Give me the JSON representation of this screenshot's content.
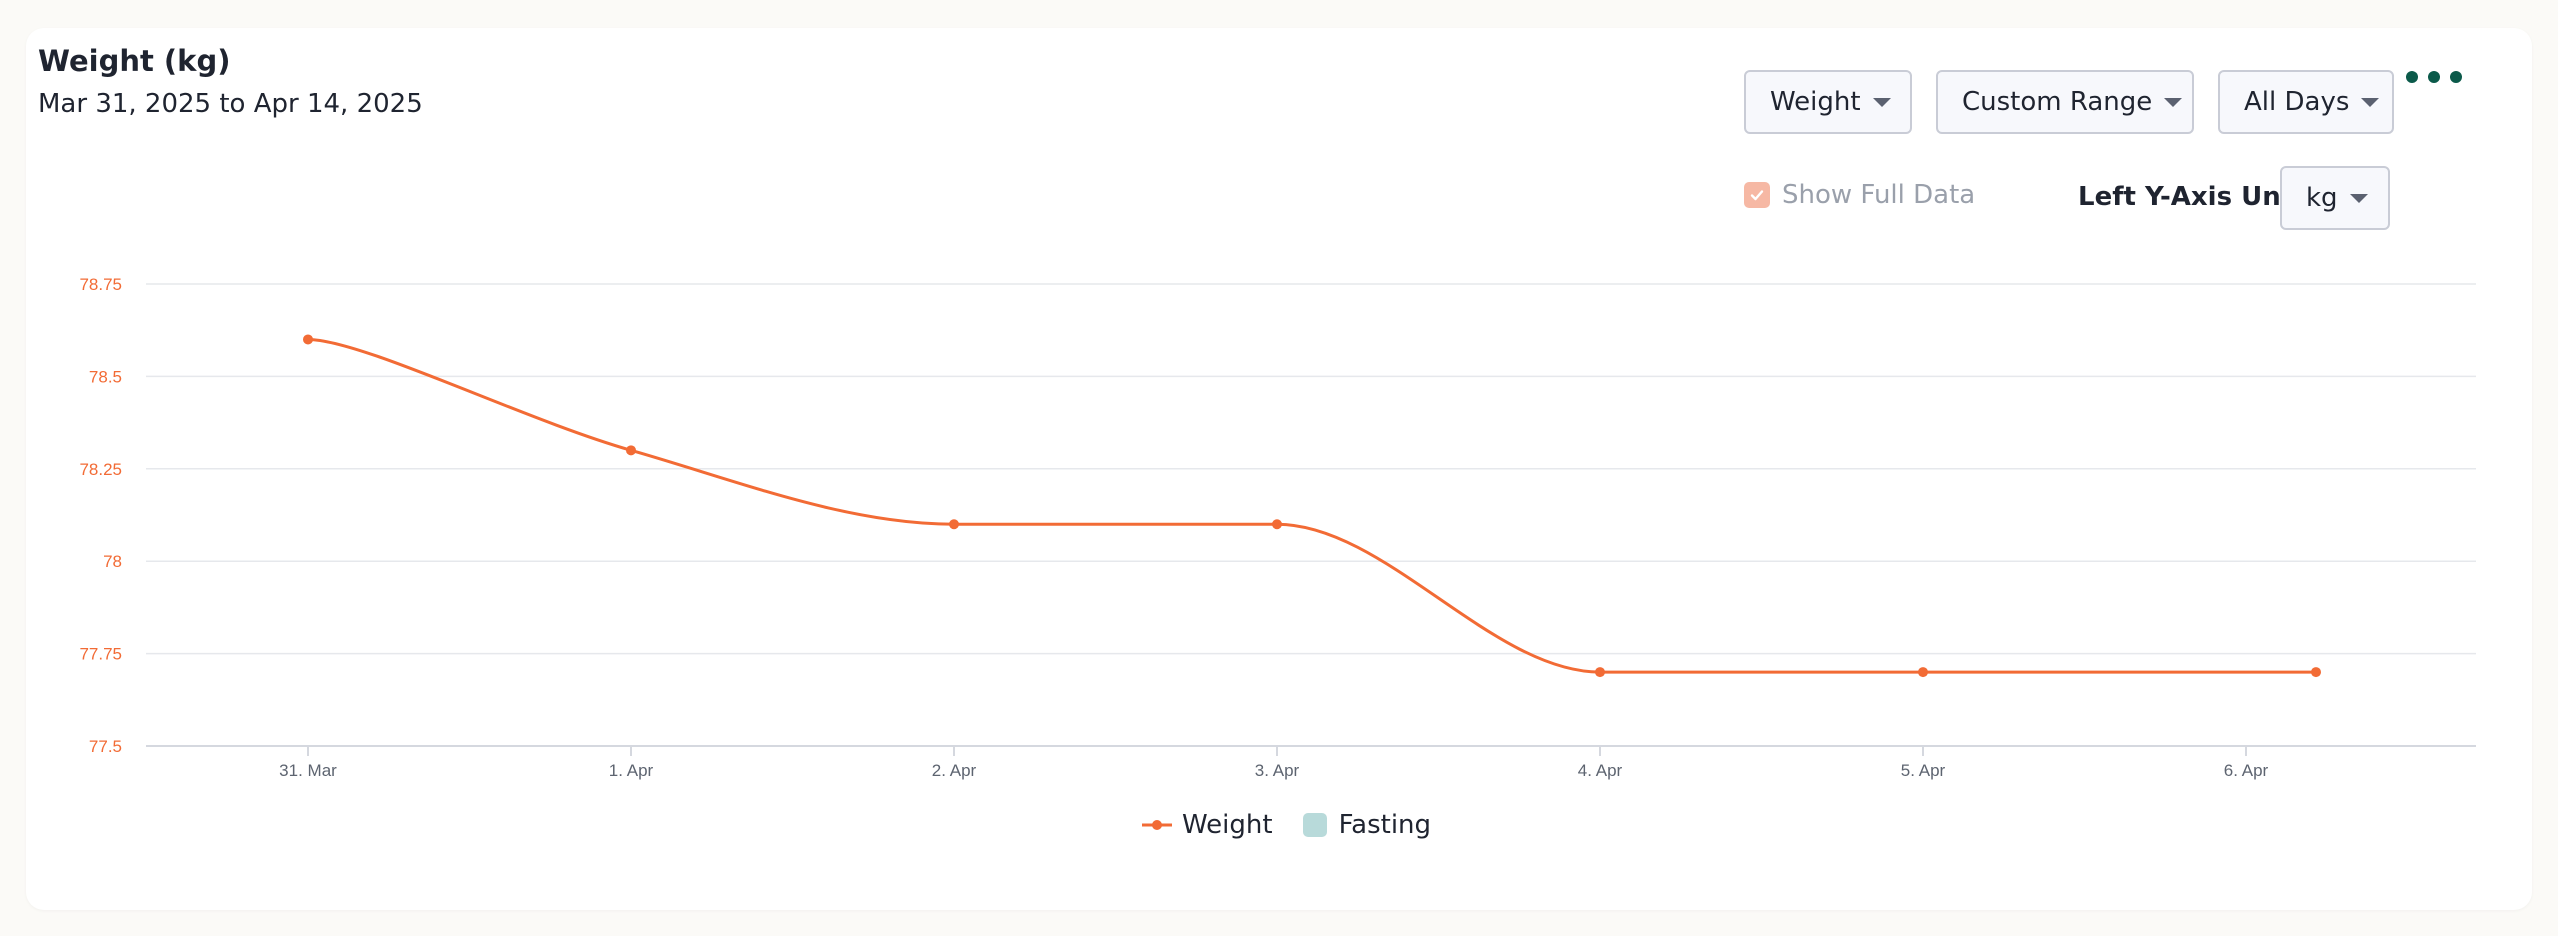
{
  "header": {
    "title": "Weight (kg)",
    "date_range": "Mar 31, 2025 to Apr 14, 2025"
  },
  "controls": {
    "metric_dropdown": "Weight",
    "range_dropdown": "Custom Range",
    "days_dropdown": "All Days",
    "show_full_data_label": "Show Full Data",
    "show_full_data_checked": true,
    "left_axis_label": "Left Y-Axis Unit",
    "left_axis_unit": "kg"
  },
  "icons": {
    "more": "more-horizontal-icon",
    "checkbox": "check-icon",
    "caret": "chevron-down-icon"
  },
  "colors": {
    "weight_series": "#f26b35",
    "fasting_series": "#b8dada",
    "more_dots": "#0b5a4a",
    "axis_tick_text": "#f26b35"
  },
  "chart_data": {
    "type": "line",
    "categories": [
      "31. Mar",
      "1. Apr",
      "2. Apr",
      "3. Apr",
      "4. Apr",
      "5. Apr",
      "6. Apr"
    ],
    "y_ticks": [
      "77.5",
      "77.75",
      "78",
      "78.25",
      "78.5",
      "78.75"
    ],
    "ylim": [
      77.5,
      78.75
    ],
    "grid": true,
    "legend_position": "bottom-center",
    "series": [
      {
        "name": "Weight",
        "points": [
          {
            "x": "31. Mar",
            "y": 78.6
          },
          {
            "x": "1. Apr",
            "y": 78.3
          },
          {
            "x": "2. Apr",
            "y": 78.1
          },
          {
            "x": "3. Apr",
            "y": 78.1
          },
          {
            "x": "4. Apr",
            "y": 77.7
          },
          {
            "x": "5. Apr",
            "y": 77.7
          },
          {
            "x": "6. Apr (late)",
            "y": 77.7
          }
        ]
      },
      {
        "name": "Fasting",
        "points": []
      }
    ]
  }
}
